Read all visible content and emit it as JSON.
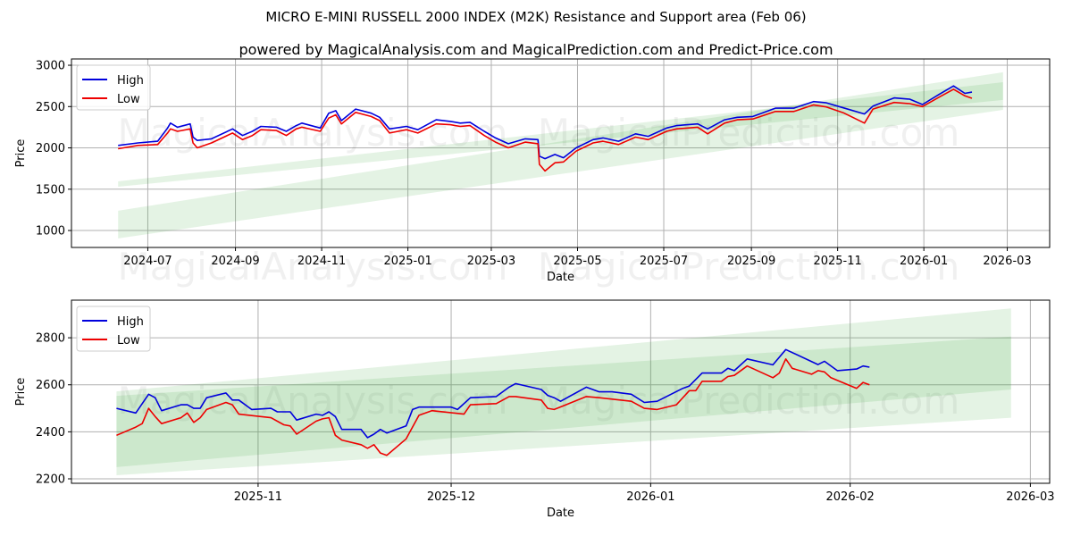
{
  "title": "MICRO E-MINI RUSSELL 2000 INDEX (M2K) Resistance and Support area (Feb 06)",
  "subtitle": "powered by MagicalAnalysis.com and MagicalPrediction.com and Predict-Price.com",
  "watermarks": [
    "MagicalAnalysis.com",
    "MagicalPrediction.com"
  ],
  "colors": {
    "high": "#0000dd",
    "low": "#ee0000",
    "band": "#2ca02c",
    "grid": "#b0b0b0"
  },
  "chart_data": [
    {
      "type": "line",
      "xlabel": "Date",
      "ylabel": "Price",
      "xlim": [
        "2024-05-08",
        "2026-03-31"
      ],
      "ylim": [
        795,
        3076
      ],
      "yticks": [
        1000,
        1500,
        2000,
        2500,
        3000
      ],
      "xticks": [
        "2024-07",
        "2024-09",
        "2024-11",
        "2025-01",
        "2025-03",
        "2025-05",
        "2025-07",
        "2025-09",
        "2025-11",
        "2026-01",
        "2026-03"
      ],
      "grid": true,
      "legend": {
        "position": "top-left",
        "entries": [
          "High",
          "Low"
        ]
      },
      "bands": [
        {
          "start": "2024-06-10",
          "end": "2026-02-26",
          "start_range": [
            1530,
            1595
          ],
          "end_range": [
            2580,
            2795
          ]
        },
        {
          "start": "2024-06-10",
          "end": "2026-02-26",
          "start_range": [
            905,
            1240
          ],
          "end_range": [
            2460,
            2915
          ]
        }
      ],
      "dates": [
        "2024-06-10",
        "2024-06-24",
        "2024-07-08",
        "2024-07-15",
        "2024-07-17",
        "2024-07-22",
        "2024-07-31",
        "2024-08-02",
        "2024-08-05",
        "2024-08-15",
        "2024-08-30",
        "2024-09-06",
        "2024-09-13",
        "2024-09-19",
        "2024-09-30",
        "2024-10-07",
        "2024-10-14",
        "2024-10-18",
        "2024-10-31",
        "2024-11-06",
        "2024-11-11",
        "2024-11-15",
        "2024-11-25",
        "2024-12-06",
        "2024-12-12",
        "2024-12-19",
        "2024-12-31",
        "2025-01-08",
        "2025-01-21",
        "2025-01-31",
        "2025-02-07",
        "2025-02-14",
        "2025-02-24",
        "2025-03-04",
        "2025-03-13",
        "2025-03-25",
        "2025-04-03",
        "2025-04-04",
        "2025-04-08",
        "2025-04-15",
        "2025-04-21",
        "2025-04-30",
        "2025-05-12",
        "2025-05-19",
        "2025-05-30",
        "2025-06-11",
        "2025-06-20",
        "2025-07-03",
        "2025-07-10",
        "2025-07-25",
        "2025-08-01",
        "2025-08-13",
        "2025-08-22",
        "2025-09-02",
        "2025-09-18",
        "2025-10-01",
        "2025-10-15",
        "2025-10-24",
        "2025-11-05",
        "2025-11-20",
        "2025-11-26",
        "2025-12-11",
        "2025-12-22",
        "2025-12-31",
        "2026-01-12",
        "2026-01-22",
        "2026-01-30",
        "2026-02-04"
      ],
      "series": [
        {
          "name": "High",
          "values": [
            2030,
            2060,
            2080,
            2240,
            2300,
            2250,
            2290,
            2130,
            2090,
            2110,
            2230,
            2150,
            2200,
            2260,
            2250,
            2200,
            2270,
            2300,
            2240,
            2420,
            2450,
            2330,
            2470,
            2420,
            2370,
            2230,
            2260,
            2220,
            2340,
            2320,
            2300,
            2310,
            2200,
            2120,
            2050,
            2110,
            2100,
            1900,
            1870,
            1920,
            1880,
            2000,
            2100,
            2120,
            2080,
            2170,
            2140,
            2240,
            2270,
            2290,
            2230,
            2340,
            2370,
            2380,
            2480,
            2480,
            2560,
            2545,
            2485,
            2410,
            2505,
            2605,
            2590,
            2525,
            2650,
            2750,
            2660,
            2675
          ]
        },
        {
          "name": "Low",
          "values": [
            1990,
            2030,
            2040,
            2180,
            2230,
            2200,
            2230,
            2060,
            2000,
            2060,
            2180,
            2100,
            2150,
            2220,
            2210,
            2150,
            2230,
            2250,
            2200,
            2360,
            2400,
            2290,
            2430,
            2380,
            2330,
            2180,
            2220,
            2180,
            2290,
            2280,
            2260,
            2270,
            2150,
            2070,
            2000,
            2070,
            2050,
            1800,
            1720,
            1820,
            1830,
            1960,
            2060,
            2080,
            2040,
            2130,
            2100,
            2200,
            2230,
            2250,
            2170,
            2300,
            2340,
            2350,
            2440,
            2440,
            2520,
            2495,
            2425,
            2300,
            2470,
            2550,
            2535,
            2500,
            2615,
            2710,
            2630,
            2600
          ]
        }
      ]
    },
    {
      "type": "line",
      "xlabel": "Date",
      "ylabel": "Price",
      "xlim": [
        "2025-10-03",
        "2026-03-04"
      ],
      "ylim": [
        2181,
        2960
      ],
      "yticks": [
        2200,
        2400,
        2600,
        2800
      ],
      "xticks": [
        "2025-11",
        "2025-12",
        "2026-01",
        "2026-02",
        "2026-03"
      ],
      "grid": true,
      "legend": {
        "position": "top-left",
        "entries": [
          "High",
          "Low"
        ]
      },
      "bands": [
        {
          "start": "2025-10-10",
          "end": "2026-02-26",
          "start_range": [
            2250,
            2553
          ],
          "end_range": [
            2580,
            2805
          ]
        },
        {
          "start": "2025-10-10",
          "end": "2026-02-26",
          "start_range": [
            2215,
            2572
          ],
          "end_range": [
            2460,
            2925
          ]
        }
      ],
      "high": {
        "name": "High",
        "dates": [
          "2025-10-10",
          "2025-10-13",
          "2025-10-15",
          "2025-10-16",
          "2025-10-17",
          "2025-10-20",
          "2025-10-21",
          "2025-10-22",
          "2025-10-23",
          "2025-10-24",
          "2025-10-27",
          "2025-10-28",
          "2025-10-29",
          "2025-10-31",
          "2025-11-03",
          "2025-11-04",
          "2025-11-06",
          "2025-11-07",
          "2025-11-10",
          "2025-11-11",
          "2025-11-12",
          "2025-11-13",
          "2025-11-14",
          "2025-11-17",
          "2025-11-18",
          "2025-11-19",
          "2025-11-20",
          "2025-11-21",
          "2025-11-24",
          "2025-11-25",
          "2025-11-26",
          "2025-12-01",
          "2025-12-02",
          "2025-12-04",
          "2025-12-08",
          "2025-12-10",
          "2025-12-11",
          "2025-12-15",
          "2025-12-16",
          "2025-12-17",
          "2025-12-18",
          "2025-12-22",
          "2025-12-24",
          "2025-12-26",
          "2025-12-29",
          "2025-12-31",
          "2026-01-02",
          "2026-01-06",
          "2026-01-07",
          "2026-01-09",
          "2026-01-12",
          "2026-01-13",
          "2026-01-14",
          "2026-01-16",
          "2026-01-20",
          "2026-01-22",
          "2026-01-27",
          "2026-01-28",
          "2026-01-30",
          "2026-02-02",
          "2026-02-03",
          "2026-02-04"
        ],
        "values": [
          2500,
          2480,
          2560,
          2545,
          2490,
          2515,
          2515,
          2500,
          2500,
          2545,
          2565,
          2535,
          2535,
          2495,
          2500,
          2485,
          2485,
          2450,
          2475,
          2470,
          2485,
          2465,
          2410,
          2410,
          2375,
          2390,
          2410,
          2395,
          2425,
          2495,
          2505,
          2505,
          2495,
          2545,
          2550,
          2590,
          2605,
          2580,
          2555,
          2545,
          2530,
          2590,
          2570,
          2570,
          2560,
          2525,
          2530,
          2585,
          2595,
          2650,
          2650,
          2670,
          2660,
          2710,
          2685,
          2750,
          2686,
          2700,
          2660,
          2667,
          2680,
          2675
        ]
      },
      "low": {
        "name": "Low",
        "dates": [
          "2025-10-10",
          "2025-10-13",
          "2025-10-14",
          "2025-10-15",
          "2025-10-16",
          "2025-10-17",
          "2025-10-20",
          "2025-10-21",
          "2025-10-22",
          "2025-10-23",
          "2025-10-24",
          "2025-10-27",
          "2025-10-28",
          "2025-10-29",
          "2025-11-03",
          "2025-11-05",
          "2025-11-06",
          "2025-11-07",
          "2025-11-10",
          "2025-11-11",
          "2025-11-12",
          "2025-11-13",
          "2025-11-14",
          "2025-11-17",
          "2025-11-18",
          "2025-11-19",
          "2025-11-20",
          "2025-11-21",
          "2025-11-24",
          "2025-11-26",
          "2025-11-28",
          "2025-12-03",
          "2025-12-04",
          "2025-12-08",
          "2025-12-10",
          "2025-12-11",
          "2025-12-15",
          "2025-12-16",
          "2025-12-17",
          "2025-12-22",
          "2025-12-24",
          "2025-12-29",
          "2025-12-31",
          "2026-01-02",
          "2026-01-05",
          "2026-01-07",
          "2026-01-08",
          "2026-01-09",
          "2026-01-12",
          "2026-01-13",
          "2026-01-14",
          "2026-01-16",
          "2026-01-20",
          "2026-01-21",
          "2026-01-22",
          "2026-01-23",
          "2026-01-26",
          "2026-01-27",
          "2026-01-28",
          "2026-01-29",
          "2026-02-02",
          "2026-02-03",
          "2026-02-04"
        ],
        "values": [
          2385,
          2420,
          2435,
          2500,
          2465,
          2435,
          2460,
          2480,
          2440,
          2460,
          2495,
          2525,
          2515,
          2475,
          2460,
          2430,
          2425,
          2390,
          2445,
          2455,
          2460,
          2385,
          2365,
          2345,
          2330,
          2345,
          2310,
          2300,
          2370,
          2470,
          2490,
          2475,
          2515,
          2520,
          2550,
          2550,
          2535,
          2500,
          2495,
          2550,
          2545,
          2530,
          2500,
          2495,
          2515,
          2575,
          2575,
          2615,
          2615,
          2635,
          2640,
          2680,
          2630,
          2650,
          2710,
          2670,
          2645,
          2660,
          2655,
          2630,
          2585,
          2610,
          2600
        ]
      }
    }
  ]
}
